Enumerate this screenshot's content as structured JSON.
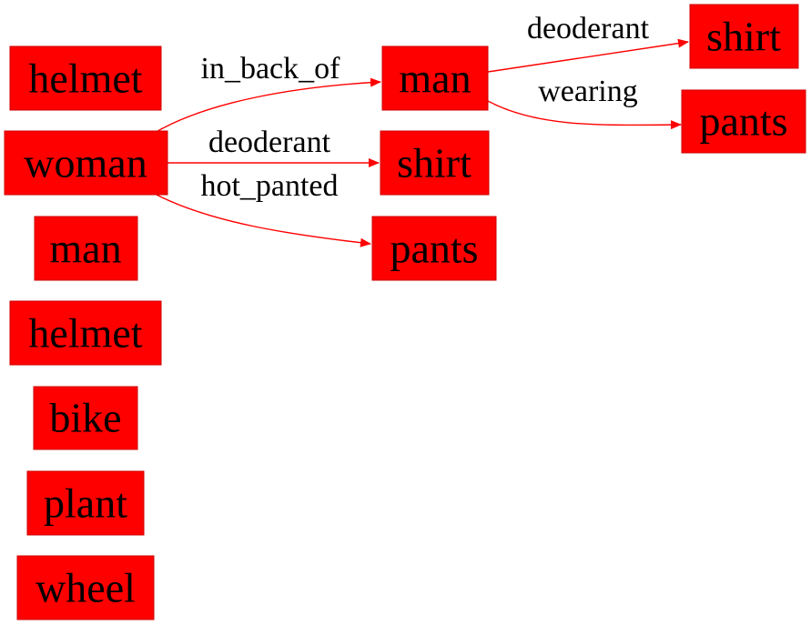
{
  "nodes": {
    "helmet_1": "helmet",
    "woman": "woman",
    "man_1": "man",
    "helmet_2": "helmet",
    "bike": "bike",
    "plant": "plant",
    "wheel": "wheel",
    "man_2": "man",
    "shirt_1": "shirt",
    "pants_1": "pants",
    "shirt_2": "shirt",
    "pants_2": "pants"
  },
  "edges": {
    "woman_man": "in_back_of",
    "woman_shirt": "deoderant",
    "woman_pants": "hot_panted",
    "man_shirt": "deoderant",
    "man_pants": "wearing"
  },
  "colors": {
    "node_fill": "#ff0000",
    "edge": "#ff0000",
    "text": "#000000"
  }
}
